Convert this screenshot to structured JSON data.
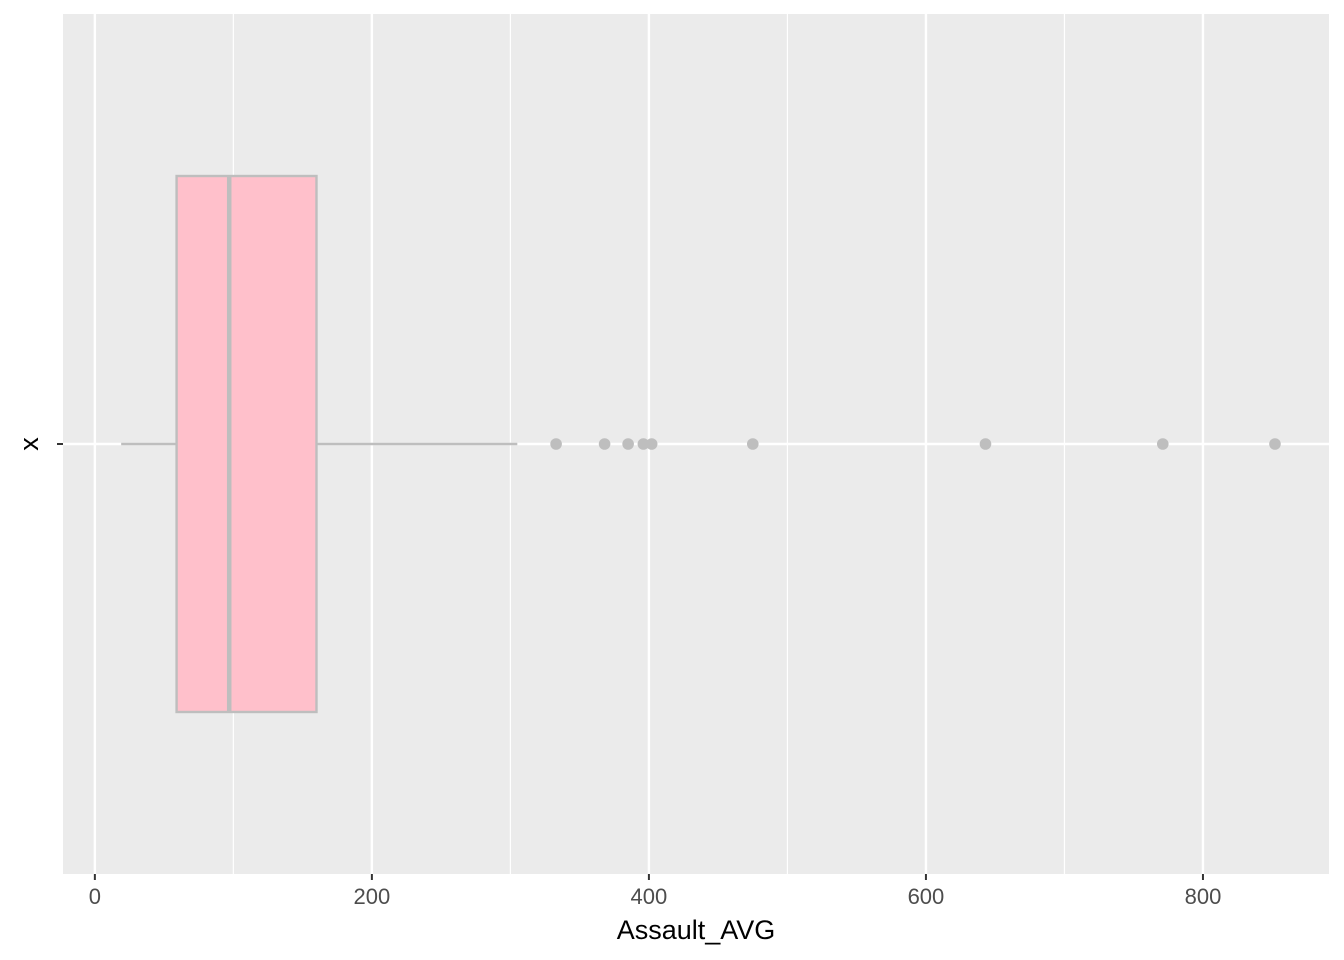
{
  "chart_data": {
    "type": "boxplot",
    "orientation": "horizontal",
    "xlabel": "Assault_AVG",
    "ylabel": "x",
    "xlim": [
      -23,
      891
    ],
    "x_ticks": [
      0,
      200,
      400,
      600,
      800
    ],
    "x_tick_labels": [
      "0",
      "200",
      "400",
      "600",
      "800"
    ],
    "y_categories": [
      "x"
    ],
    "grid": true,
    "box": {
      "category": "x",
      "whisker_low": 19,
      "q1": 59,
      "median": 97,
      "q3": 160,
      "whisker_high": 305,
      "outliers": [
        333,
        368,
        385,
        396,
        402,
        475,
        643,
        771,
        852
      ]
    },
    "colors": {
      "panel_background": "#ebebeb",
      "grid_major": "#ffffff",
      "box_fill": "#ffc0cb",
      "box_outline": "#bebebe",
      "outlier_point": "#bebebe",
      "tick_label": "#4d4d4d",
      "axis_title": "#000000"
    }
  }
}
